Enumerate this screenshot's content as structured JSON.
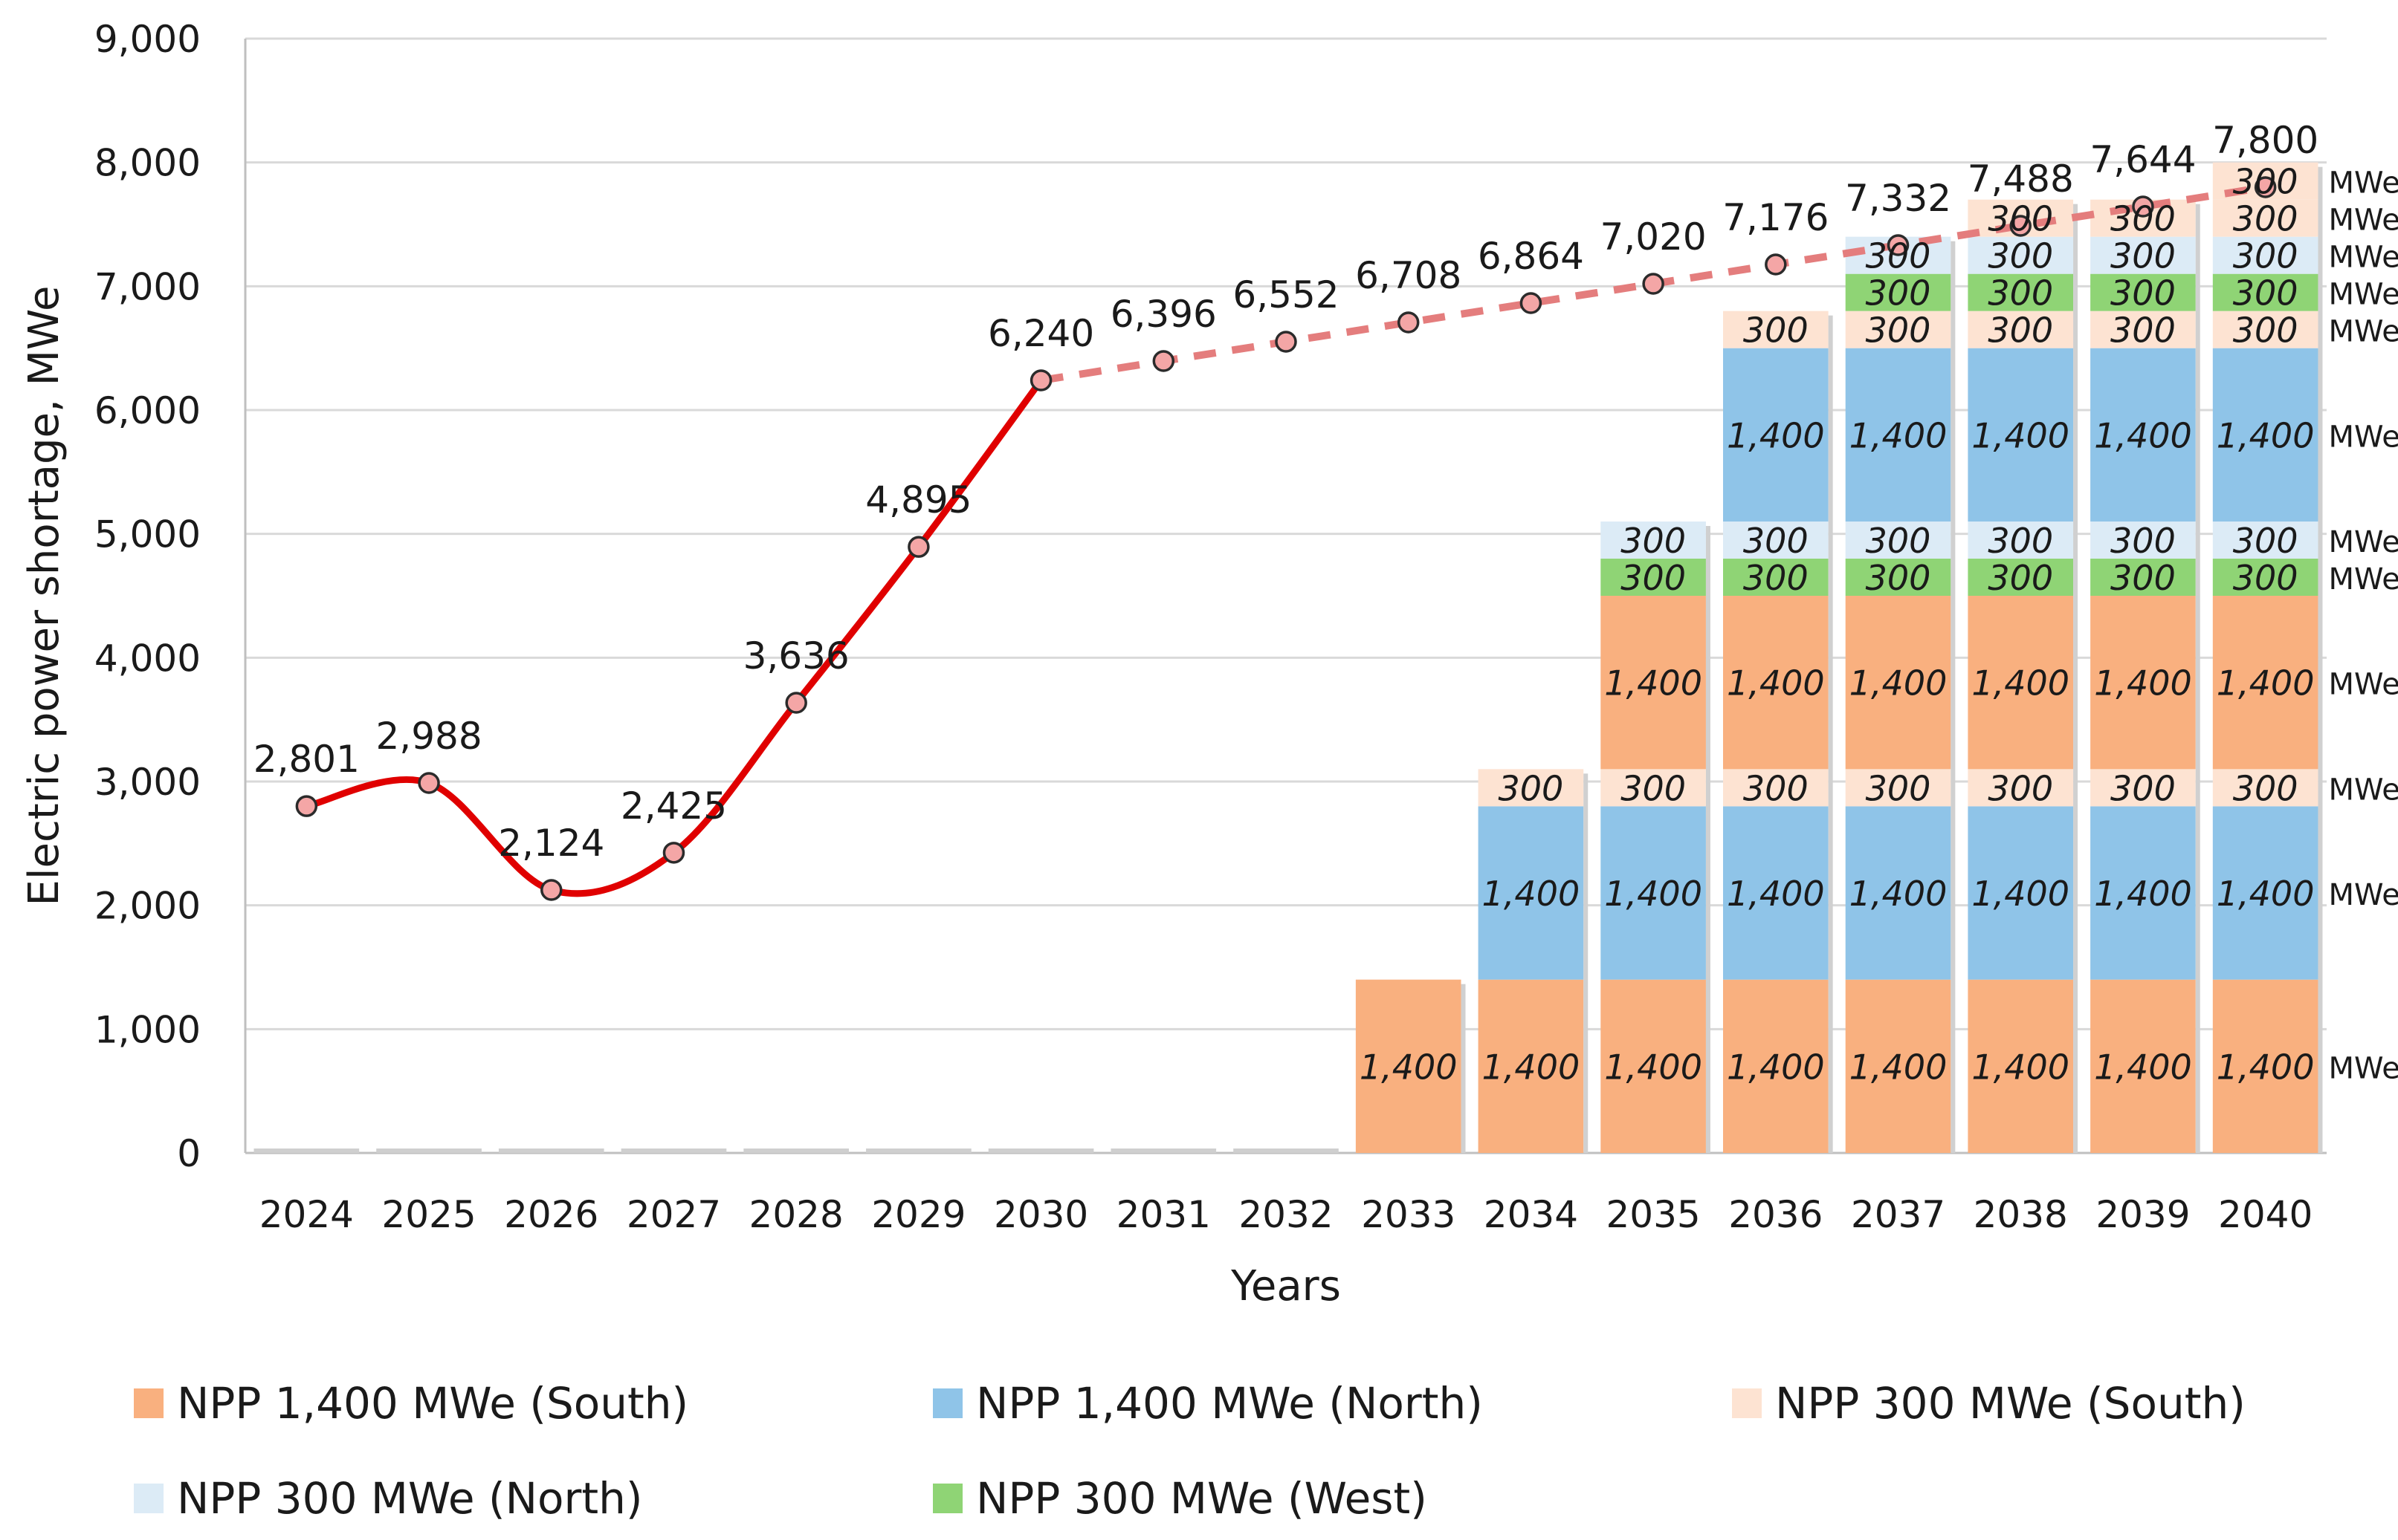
{
  "chart_data": {
    "type": "bar",
    "title": "",
    "xlabel": "Years",
    "ylabel": "Electric power shortage, MWe",
    "ylim": [
      0,
      9000
    ],
    "yticks": [
      0,
      1000,
      2000,
      3000,
      4000,
      5000,
      6000,
      7000,
      8000,
      9000
    ],
    "ytick_labels": [
      "0",
      "1,000",
      "2,000",
      "3,000",
      "4,000",
      "5,000",
      "6,000",
      "7,000",
      "8,000",
      "9,000"
    ],
    "grid": true,
    "legend_position": "bottom",
    "categories": [
      "2024",
      "2025",
      "2026",
      "2027",
      "2028",
      "2029",
      "2030",
      "2031",
      "2032",
      "2033",
      "2034",
      "2035",
      "2036",
      "2037",
      "2038",
      "2039",
      "2040"
    ],
    "shortage_line": {
      "name": "Electric power shortage",
      "values": [
        2801,
        2988,
        2124,
        2425,
        3636,
        4895,
        6240,
        6396,
        6552,
        6708,
        6864,
        7020,
        7176,
        7332,
        7488,
        7644,
        7800
      ],
      "labels": [
        "2,801",
        "2,988",
        "2,124",
        "2,425",
        "3,636",
        "4,895",
        "6,240",
        "6,396",
        "6,552",
        "6,708",
        "6,864",
        "7,020",
        "7,176",
        "7,332",
        "7,488",
        "7,644",
        "7,800"
      ],
      "solid_until": "2030",
      "dashed_from": "2030",
      "color": "#e00000",
      "dash_color": "#e47d7d",
      "marker_color": "#f4a6a6"
    },
    "stack_order": [
      {
        "name": "NPP 1,400 MWe (South)",
        "mw": 1400,
        "label": "1,400",
        "start": "2033",
        "color": "#f9b07f"
      },
      {
        "name": "NPP 1,400 MWe (North)",
        "mw": 1400,
        "label": "1,400",
        "start": "2034",
        "color": "#8fc4e8"
      },
      {
        "name": "NPP 300 MWe (South)",
        "mw": 300,
        "label": "300",
        "start": "2034",
        "color": "#fde3d2"
      },
      {
        "name": "NPP 1,400 MWe (South)",
        "mw": 1400,
        "label": "1,400",
        "start": "2035",
        "color": "#f9b07f"
      },
      {
        "name": "NPP 300 MWe (West)",
        "mw": 300,
        "label": "300",
        "start": "2035",
        "color": "#8fd475"
      },
      {
        "name": "NPP 300 MWe (North)",
        "mw": 300,
        "label": "300",
        "start": "2035",
        "color": "#dcebf6"
      },
      {
        "name": "NPP 1,400 MWe (North)",
        "mw": 1400,
        "label": "1,400",
        "start": "2036",
        "color": "#8fc4e8"
      },
      {
        "name": "NPP 300 MWe (South)",
        "mw": 300,
        "label": "300",
        "start": "2036",
        "color": "#fde3d2"
      },
      {
        "name": "NPP 300 MWe (West)",
        "mw": 300,
        "label": "300",
        "start": "2037",
        "color": "#8fd475"
      },
      {
        "name": "NPP 300 MWe (North)",
        "mw": 300,
        "label": "300",
        "start": "2037",
        "color": "#dcebf6"
      },
      {
        "name": "NPP 300 MWe (South)",
        "mw": 300,
        "label": "300",
        "start": "2038",
        "color": "#fde3d2"
      },
      {
        "name": "NPP 300 MWe (South)",
        "mw": 300,
        "label": "300",
        "start": "2040",
        "color": "#fde3d2"
      }
    ],
    "unit_label": "MWe",
    "legend": [
      {
        "name": "NPP 1,400 MWe (South)",
        "color": "#f9b07f"
      },
      {
        "name": "NPP 1,400 MWe (North)",
        "color": "#8fc4e8"
      },
      {
        "name": "NPP 300 MWe (South)",
        "color": "#fde3d2"
      },
      {
        "name": "NPP 300 MWe (North)",
        "color": "#dcebf6"
      },
      {
        "name": "NPP 300 MWe (West)",
        "color": "#8fd475"
      }
    ]
  }
}
